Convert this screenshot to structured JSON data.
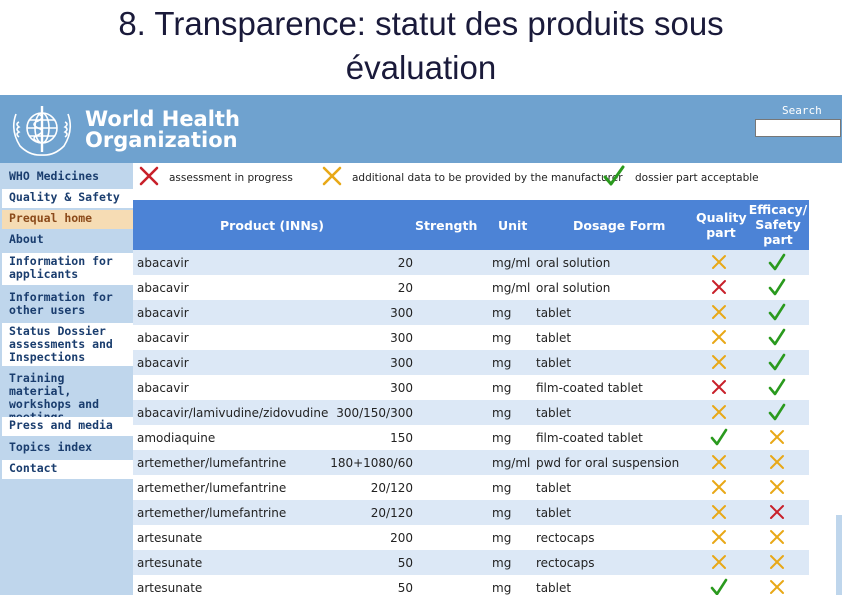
{
  "slide": {
    "title_line1": "8. Transparence: statut des produits sous",
    "title_line2": "évaluation"
  },
  "header": {
    "org_line1": "World Health",
    "org_line2": "Organization",
    "search_label": "Search"
  },
  "sidebar": {
    "items": [
      {
        "label": "WHO Medicines"
      },
      {
        "label": "Quality & Safety"
      },
      {
        "label": "Prequal home"
      },
      {
        "label": "About"
      },
      {
        "label": "Information for applicants"
      },
      {
        "label": "Information for other users"
      },
      {
        "label": "Status   Dossier assessments and Inspections"
      },
      {
        "label": "Training material, workshops and meetings"
      },
      {
        "label": "Press and media"
      },
      {
        "label": "Topics index"
      },
      {
        "label": "Contact"
      }
    ]
  },
  "legend": {
    "in_progress": "assessment in progress",
    "additional_data": "additional data to be provided by the manufacturer",
    "acceptable": "dossier part acceptable"
  },
  "table": {
    "headers": {
      "product": "Product (INNs)",
      "strength": "Strength",
      "unit": "Unit",
      "dosage_form": "Dosage Form",
      "quality_1": "Quality",
      "quality_2": "part",
      "efficacy_1": "Efficacy/",
      "efficacy_2": "Safety",
      "efficacy_3": "part"
    },
    "rows": [
      {
        "product": "abacavir",
        "strength": "20",
        "unit": "mg/ml",
        "form": "oral solution",
        "quality": "additional",
        "efficacy": "acceptable"
      },
      {
        "product": "abacavir",
        "strength": "20",
        "unit": "mg/ml",
        "form": "oral solution",
        "quality": "in-progress",
        "efficacy": "acceptable"
      },
      {
        "product": "abacavir",
        "strength": "300",
        "unit": "mg",
        "form": "tablet",
        "quality": "additional",
        "efficacy": "acceptable"
      },
      {
        "product": "abacavir",
        "strength": "300",
        "unit": "mg",
        "form": "tablet",
        "quality": "additional",
        "efficacy": "acceptable"
      },
      {
        "product": "abacavir",
        "strength": "300",
        "unit": "mg",
        "form": "tablet",
        "quality": "additional",
        "efficacy": "acceptable"
      },
      {
        "product": "abacavir",
        "strength": "300",
        "unit": "mg",
        "form": "film-coated tablet",
        "quality": "in-progress",
        "efficacy": "acceptable"
      },
      {
        "product": "abacavir/lamivudine/zidovudine",
        "strength": "300/150/300",
        "unit": "mg",
        "form": "tablet",
        "quality": "additional",
        "efficacy": "acceptable"
      },
      {
        "product": "amodiaquine",
        "strength": "150",
        "unit": "mg",
        "form": "film-coated tablet",
        "quality": "acceptable",
        "efficacy": "additional"
      },
      {
        "product": "artemether/lumefantrine",
        "strength": "180+1080/60",
        "unit": "mg/ml",
        "form": "pwd for oral suspension",
        "quality": "additional",
        "efficacy": "additional"
      },
      {
        "product": "artemether/lumefantrine",
        "strength": "20/120",
        "unit": "mg",
        "form": "tablet",
        "quality": "additional",
        "efficacy": "additional"
      },
      {
        "product": "artemether/lumefantrine",
        "strength": "20/120",
        "unit": "mg",
        "form": "tablet",
        "quality": "additional",
        "efficacy": "in-progress"
      },
      {
        "product": "artesunate",
        "strength": "200",
        "unit": "mg",
        "form": "rectocaps",
        "quality": "additional",
        "efficacy": "additional"
      },
      {
        "product": "artesunate",
        "strength": "50",
        "unit": "mg",
        "form": "rectocaps",
        "quality": "additional",
        "efficacy": "additional"
      },
      {
        "product": "artesunate",
        "strength": "50",
        "unit": "mg",
        "form": "tablet",
        "quality": "acceptable",
        "efficacy": "additional"
      }
    ]
  },
  "colors": {
    "banner": "#6fa2cf",
    "sidebar": "#bfd6ec",
    "header": "#4c83d6",
    "row_alt": "#dce8f6",
    "in_progress": "#c8202a",
    "additional": "#e8a817",
    "acceptable": "#2a9a1e"
  },
  "icons": {
    "in_progress": "red-cross-icon",
    "additional": "orange-cross-icon",
    "acceptable": "green-check-icon"
  }
}
